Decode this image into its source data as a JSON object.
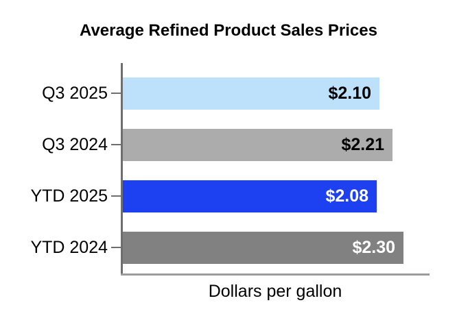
{
  "chart_data": {
    "type": "bar",
    "orientation": "horizontal",
    "title": "Average Refined Product Sales Prices",
    "xlabel": "Dollars per gallon",
    "categories": [
      "Q3 2025",
      "Q3 2024",
      "YTD 2025",
      "YTD 2024"
    ],
    "values": [
      2.1,
      2.21,
      2.08,
      2.3
    ],
    "value_labels": [
      "$2.10",
      "$2.21",
      "$2.08",
      "$2.30"
    ],
    "bar_colors": [
      "#BDE0FB",
      "#ACACAC",
      "#1D41F0",
      "#818181"
    ],
    "value_label_colors": [
      "#000000",
      "#000000",
      "#FFFFFF",
      "#FFFFFF"
    ],
    "xlim": [
      0,
      2.53
    ],
    "grid": false,
    "legend": false,
    "axis_color": "#6E6E6E"
  }
}
